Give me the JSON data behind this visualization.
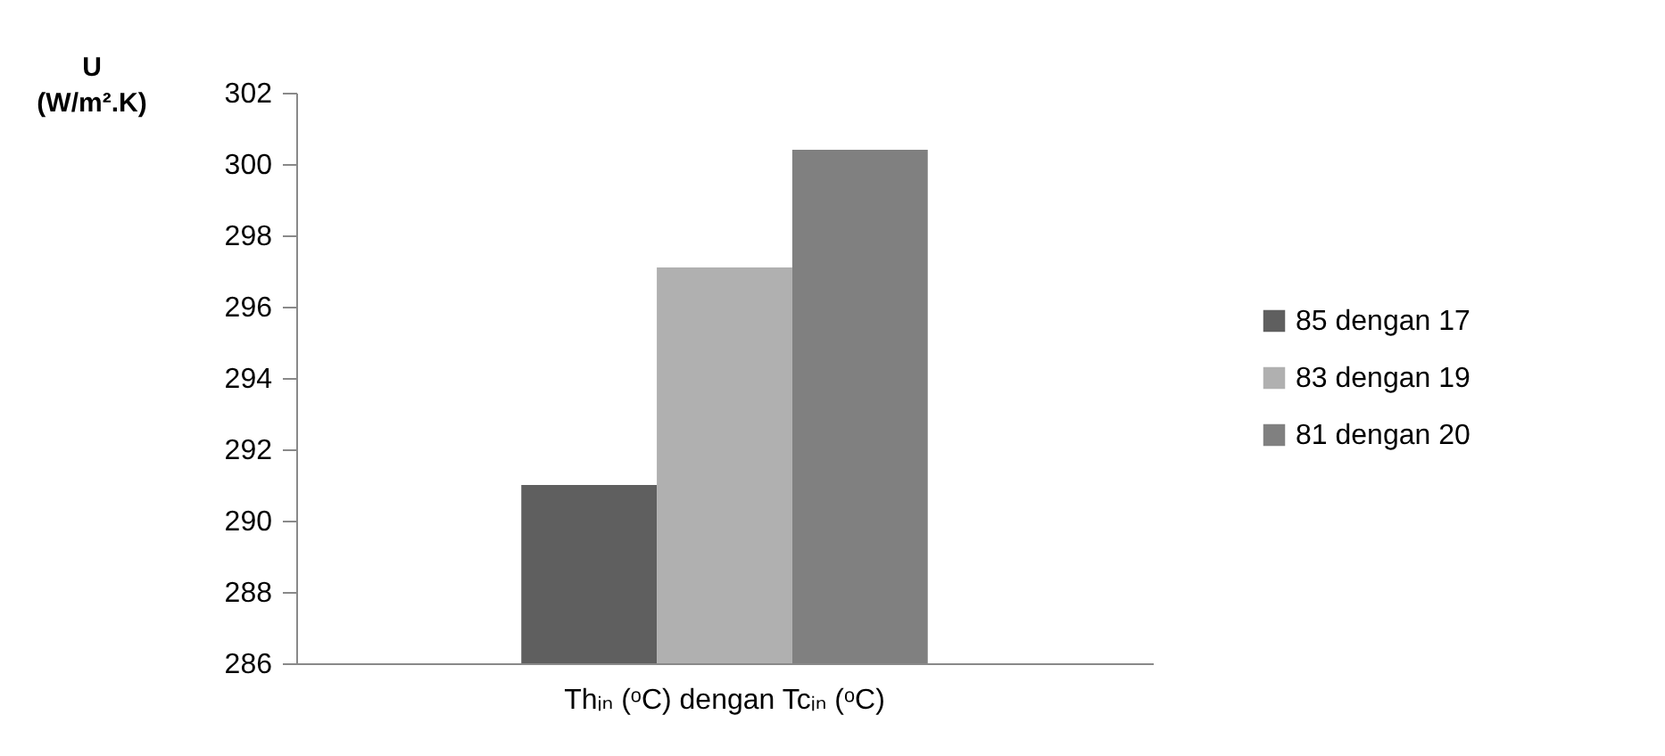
{
  "chart_data": {
    "type": "bar",
    "ylabel": "U\n(W/m².K)",
    "categories": [
      "Thᵢₙ (ᵒC) dengan Tcᵢₙ (ᵒC)"
    ],
    "series": [
      {
        "name": "85 dengan 17",
        "color": "#5f5f5f",
        "values": [
          291.0
        ]
      },
      {
        "name": "83 dengan 19",
        "color": "#b0b0b0",
        "values": [
          297.1
        ]
      },
      {
        "name": "81 dengan 20",
        "color": "#808080",
        "values": [
          300.4
        ]
      }
    ],
    "ylim": [
      286,
      302
    ],
    "yticks": [
      286,
      288,
      290,
      292,
      294,
      296,
      298,
      300,
      302
    ],
    "grid": false,
    "legend": "right"
  }
}
